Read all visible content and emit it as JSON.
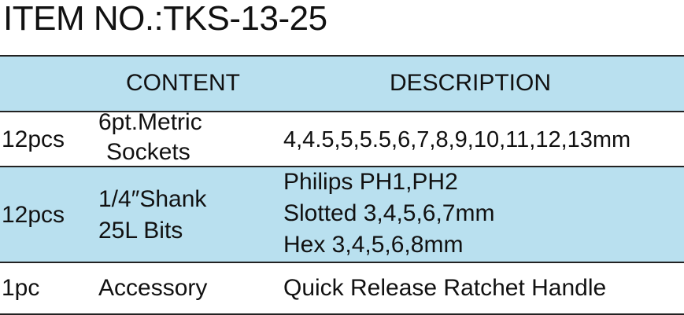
{
  "title": "ITEM NO.:TKS-13-25",
  "header": {
    "content": "CONTENT",
    "description": "DESCRIPTION"
  },
  "rows": [
    {
      "qty": "12pcs",
      "content": [
        "6pt.Metric",
        "Sockets"
      ],
      "description": [
        "4,4.5,5,5.5,6,7,8,9,10,11,12,13mm"
      ]
    },
    {
      "qty": "12pcs",
      "content": [
        "1/4″Shank",
        "25L Bits"
      ],
      "description": [
        "Philips PH1,PH2",
        "Slotted 3,4,5,6,7mm",
        "Hex 3,4,5,6,8mm"
      ]
    },
    {
      "qty": "1pc",
      "content": [
        "Accessory"
      ],
      "description": [
        "Quick Release Ratchet Handle"
      ]
    }
  ],
  "colors": {
    "shade": "#b9e0ef",
    "text": "#111111",
    "rule": "#222222"
  }
}
